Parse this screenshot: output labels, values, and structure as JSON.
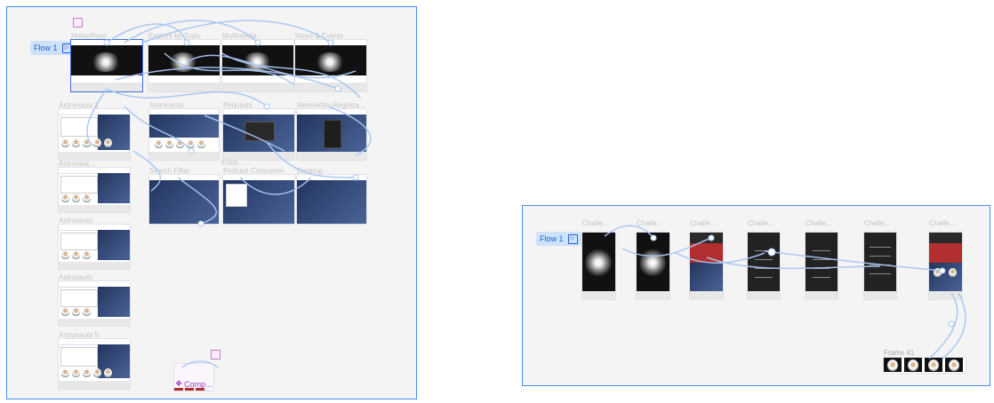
{
  "left_section": {
    "flow_label": "Flow 1",
    "frames": {
      "homepage": "HomePage",
      "explore": "Explore by Topic",
      "multimedia": "Multimedia",
      "news": "News & Events",
      "astronauts1": "Astronauts 1",
      "astronauts": "Astronauts",
      "podcasts": "Podcasts",
      "newsletter": "Newsletter Registra...",
      "astronauts_r3": "Astronaut...",
      "search": "Search Filter",
      "fram": "Fram...",
      "podcast_consumer": "Podcast Consumer",
      "desktop": "Desktop -",
      "astronauts_r4": "Astronauts",
      "astronauts_r5": "Astronauts",
      "astronauts5": "Astronauts 5"
    },
    "component_label": "Comp..."
  },
  "right_section": {
    "flow_label": "Flow 1",
    "frames": [
      "Challe...",
      "Challe...",
      "Challe...",
      "Challe...",
      "Challe...",
      "Challe...",
      "Challe..."
    ],
    "frame41": "Frame 41"
  },
  "colors": {
    "border": "#4a8cf2",
    "connector": "#a9c6f2",
    "flow": "#1d5fd1",
    "component": "#9b3fc4"
  },
  "icons": {
    "flow": "play-icon",
    "component": "component-icon"
  }
}
